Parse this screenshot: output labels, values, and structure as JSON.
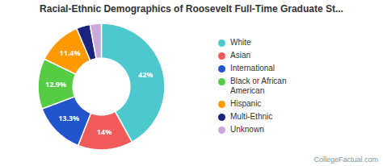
{
  "chart_data": {
    "type": "donut",
    "title": "Racial-Ethnic Demographics of Roosevelt Full-Time Graduate St...",
    "categories": [
      "White",
      "Asian",
      "International",
      "Black or African\nAmerican",
      "Hispanic",
      "Multi-Ethnic",
      "Unknown"
    ],
    "values": [
      42,
      14,
      13.3,
      12.9,
      11.4,
      3.5,
      2.9
    ],
    "colors": [
      "#4DC8CC",
      "#F05A5A",
      "#2255CC",
      "#55CC44",
      "#FF9900",
      "#1A237E",
      "#C8AADD"
    ],
    "value_labels": [
      "42%",
      "14%",
      "13.3%",
      "12.9%",
      "11.4%",
      null,
      null
    ],
    "data_labels": true,
    "legend": "right",
    "annotations": [
      "CollegeFactual.com"
    ]
  }
}
